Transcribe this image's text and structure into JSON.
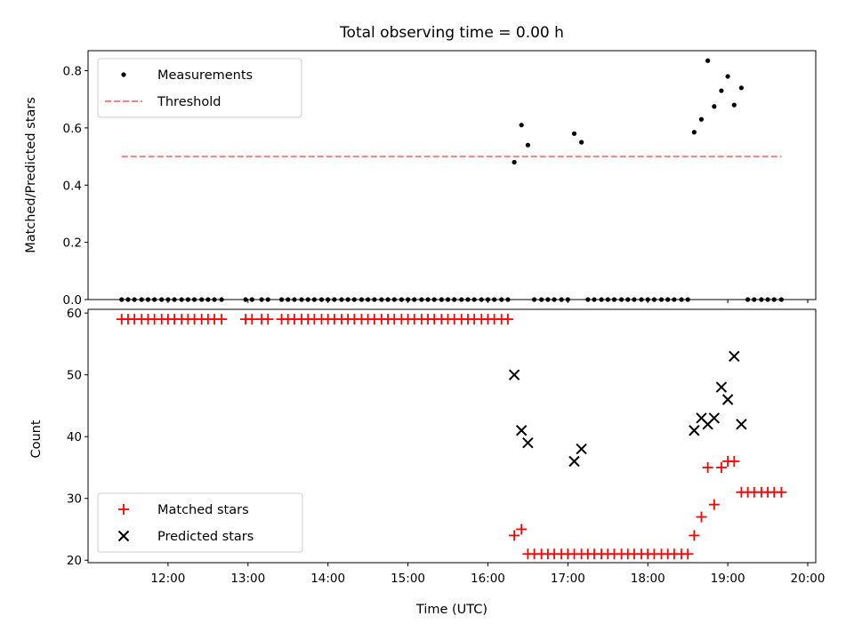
{
  "chart_data": [
    {
      "type": "scatter",
      "title": "Total observing time = 0.00 h",
      "xlabel": "",
      "ylabel": "Matched/Predicted stars",
      "xlim": [
        11.0,
        20.1
      ],
      "ylim": [
        0.0,
        0.87
      ],
      "yticks": [
        0.0,
        0.2,
        0.4,
        0.6,
        0.8
      ],
      "ytick_labels": [
        "0.0",
        "0.2",
        "0.4",
        "0.6",
        "0.8"
      ],
      "legend_position": "top-left",
      "series": [
        {
          "name": "Measurements",
          "marker": "dot",
          "color": "#000000",
          "x": [
            11.42,
            11.5,
            11.58,
            11.67,
            11.75,
            11.83,
            11.92,
            12.0,
            12.08,
            12.17,
            12.25,
            12.33,
            12.42,
            12.5,
            12.58,
            12.67,
            12.97,
            13.05,
            13.17,
            13.25,
            13.42,
            13.5,
            13.58,
            13.67,
            13.75,
            13.83,
            13.92,
            14.0,
            14.08,
            14.17,
            14.25,
            14.33,
            14.42,
            14.5,
            14.58,
            14.67,
            14.75,
            14.83,
            14.92,
            15.0,
            15.08,
            15.17,
            15.25,
            15.33,
            15.42,
            15.5,
            15.58,
            15.67,
            15.75,
            15.83,
            15.92,
            16.0,
            16.08,
            16.17,
            16.25,
            16.33,
            16.42,
            16.5,
            16.58,
            16.67,
            16.75,
            16.83,
            16.92,
            17.0,
            17.08,
            17.17,
            17.25,
            17.33,
            17.42,
            17.5,
            17.58,
            17.67,
            17.75,
            17.83,
            17.92,
            18.0,
            18.08,
            18.17,
            18.25,
            18.33,
            18.42,
            18.5,
            18.58,
            18.67,
            18.75,
            18.83,
            18.92,
            19.0,
            19.08,
            19.17,
            19.25,
            19.33,
            19.42,
            19.5,
            19.58,
            19.67
          ],
          "y": [
            0,
            0,
            0,
            0,
            0,
            0,
            0,
            0,
            0,
            0,
            0,
            0,
            0,
            0,
            0,
            0,
            0,
            0,
            0,
            0,
            0,
            0,
            0,
            0,
            0,
            0,
            0,
            0,
            0,
            0,
            0,
            0,
            0,
            0,
            0,
            0,
            0,
            0,
            0,
            0,
            0,
            0,
            0,
            0,
            0,
            0,
            0,
            0,
            0,
            0,
            0,
            0,
            0,
            0,
            0,
            0.48,
            0.61,
            0.54,
            0,
            0,
            0,
            0,
            0,
            0,
            0.58,
            0.55,
            0,
            0,
            0,
            0,
            0,
            0,
            0,
            0,
            0,
            0,
            0,
            0,
            0,
            0,
            0,
            0,
            0.585,
            0.63,
            0.835,
            0.675,
            0.73,
            0.78,
            0.68,
            0.74,
            0,
            0,
            0,
            0,
            0,
            0
          ]
        },
        {
          "name": "Threshold",
          "marker": "dashed-line",
          "color": "#ff7f7f",
          "x": [
            11.42,
            19.67
          ],
          "y": [
            0.5,
            0.5
          ]
        }
      ]
    },
    {
      "type": "scatter",
      "title": "",
      "xlabel": "Time (UTC)",
      "ylabel": "Count",
      "xlim": [
        11.0,
        20.1
      ],
      "ylim": [
        19.6,
        60.6
      ],
      "xticks": [
        12,
        13,
        14,
        15,
        16,
        17,
        18,
        19,
        20
      ],
      "xtick_labels": [
        "12:00",
        "13:00",
        "14:00",
        "15:00",
        "16:00",
        "17:00",
        "18:00",
        "19:00",
        "20:00"
      ],
      "yticks": [
        20,
        30,
        40,
        50,
        60
      ],
      "ytick_labels": [
        "20",
        "30",
        "40",
        "50",
        "60"
      ],
      "legend_position": "bottom-left",
      "series": [
        {
          "name": "Matched stars",
          "marker": "plus",
          "color": "#ff0000",
          "x": [
            11.42,
            11.5,
            11.58,
            11.67,
            11.75,
            11.83,
            11.92,
            12.0,
            12.08,
            12.17,
            12.25,
            12.33,
            12.42,
            12.5,
            12.58,
            12.67,
            12.97,
            13.05,
            13.17,
            13.25,
            13.42,
            13.5,
            13.58,
            13.67,
            13.75,
            13.83,
            13.92,
            14.0,
            14.08,
            14.17,
            14.25,
            14.33,
            14.42,
            14.5,
            14.58,
            14.67,
            14.75,
            14.83,
            14.92,
            15.0,
            15.08,
            15.17,
            15.25,
            15.33,
            15.42,
            15.5,
            15.58,
            15.67,
            15.75,
            15.83,
            15.92,
            16.0,
            16.08,
            16.17,
            16.25,
            16.33,
            16.42,
            16.5,
            16.58,
            16.67,
            16.75,
            16.83,
            16.92,
            17.0,
            17.08,
            17.17,
            17.25,
            17.33,
            17.42,
            17.5,
            17.58,
            17.67,
            17.75,
            17.83,
            17.92,
            18.0,
            18.08,
            18.17,
            18.25,
            18.33,
            18.42,
            18.5,
            18.58,
            18.67,
            18.75,
            18.83,
            18.92,
            19.0,
            19.08,
            19.17,
            19.25,
            19.33,
            19.42,
            19.5,
            19.58,
            19.67
          ],
          "y": [
            59,
            59,
            59,
            59,
            59,
            59,
            59,
            59,
            59,
            59,
            59,
            59,
            59,
            59,
            59,
            59,
            59,
            59,
            59,
            59,
            59,
            59,
            59,
            59,
            59,
            59,
            59,
            59,
            59,
            59,
            59,
            59,
            59,
            59,
            59,
            59,
            59,
            59,
            59,
            59,
            59,
            59,
            59,
            59,
            59,
            59,
            59,
            59,
            59,
            59,
            59,
            59,
            59,
            59,
            59,
            24,
            25,
            21,
            21,
            21,
            21,
            21,
            21,
            21,
            21,
            21,
            21,
            21,
            21,
            21,
            21,
            21,
            21,
            21,
            21,
            21,
            21,
            21,
            21,
            21,
            21,
            21,
            24,
            27,
            35,
            29,
            35,
            36,
            36,
            31,
            31,
            31,
            31,
            31,
            31,
            31
          ]
        },
        {
          "name": "Predicted stars",
          "marker": "x",
          "color": "#000000",
          "x": [
            16.33,
            16.42,
            16.5,
            17.08,
            17.17,
            18.58,
            18.67,
            18.75,
            18.83,
            18.92,
            19.0,
            19.08,
            19.17
          ],
          "y": [
            50,
            41,
            39,
            36,
            38,
            41,
            43,
            42,
            43,
            48,
            46,
            53,
            42
          ]
        }
      ]
    }
  ]
}
